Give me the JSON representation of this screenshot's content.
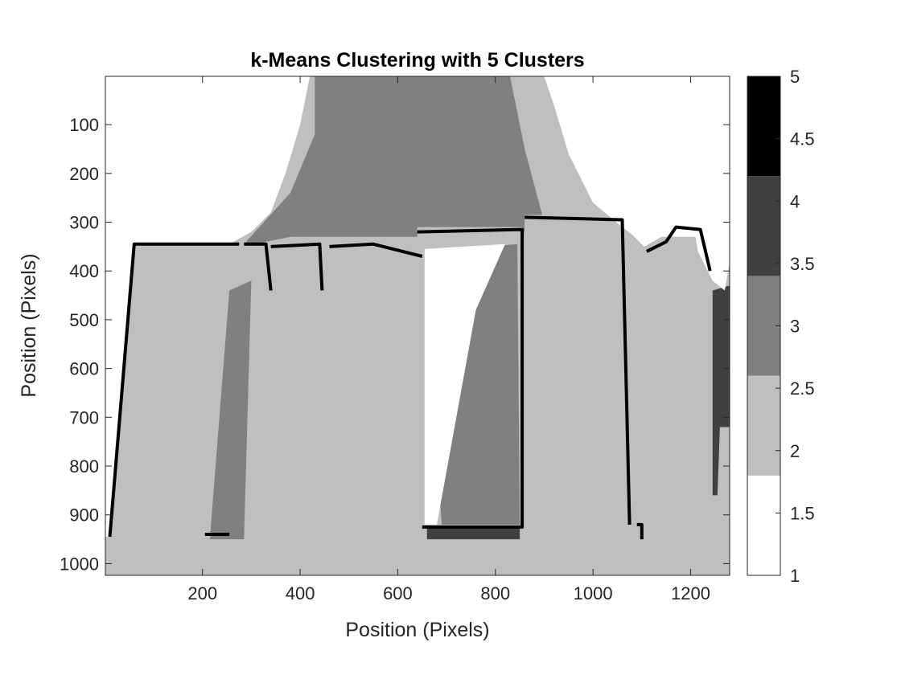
{
  "chart_data": {
    "type": "heatmap",
    "title": "k-Means Clustering with 5 Clusters",
    "xlabel": "Position (Pixels)",
    "ylabel": "Position (Pixels)",
    "xlim": [
      1,
      1280
    ],
    "ylim": [
      1,
      1024
    ],
    "y_direction": "reversed",
    "x_ticks": [
      200,
      400,
      600,
      800,
      1000,
      1200
    ],
    "y_ticks": [
      100,
      200,
      300,
      400,
      500,
      600,
      700,
      800,
      900,
      1000
    ],
    "colorbar": {
      "range": [
        1,
        5
      ],
      "ticks": [
        "1",
        "1.5",
        "2",
        "2.5",
        "3",
        "3.5",
        "4",
        "4.5",
        "5"
      ],
      "levels": [
        {
          "cluster": 1,
          "color": "#ffffff"
        },
        {
          "cluster": 2,
          "color": "#bfbfbf"
        },
        {
          "cluster": 3,
          "color": "#808080"
        },
        {
          "cluster": 4,
          "color": "#404040"
        },
        {
          "cluster": 5,
          "color": "#000000"
        }
      ]
    },
    "regions": [
      {
        "cluster": 3,
        "points": [
          [
            280,
            350
          ],
          [
            380,
            240
          ],
          [
            430,
            120
          ],
          [
            430,
            1
          ],
          [
            830,
            1
          ],
          [
            860,
            150
          ],
          [
            900,
            300
          ],
          [
            860,
            330
          ],
          [
            650,
            330
          ],
          [
            470,
            330
          ],
          [
            380,
            330
          ]
        ]
      },
      {
        "cluster": 2,
        "points": [
          [
            1,
            1024
          ],
          [
            1,
            945
          ],
          [
            10,
            945
          ],
          [
            60,
            345
          ],
          [
            275,
            345
          ],
          [
            255,
            940
          ],
          [
            205,
            940
          ],
          [
            230,
            500
          ],
          [
            255,
            345
          ],
          [
            275,
            345
          ],
          [
            290,
            300
          ],
          [
            300,
            950
          ],
          [
            330,
            950
          ],
          [
            340,
            345
          ],
          [
            440,
            345
          ],
          [
            445,
            950
          ],
          [
            460,
            950
          ],
          [
            460,
            345
          ],
          [
            550,
            345
          ],
          [
            650,
            370
          ],
          [
            650,
            920
          ],
          [
            700,
            960
          ],
          [
            850,
            960
          ],
          [
            855,
            320
          ],
          [
            1070,
            310
          ],
          [
            1080,
            920
          ],
          [
            1100,
            920
          ],
          [
            1110,
            350
          ],
          [
            1170,
            310
          ],
          [
            1220,
            310
          ],
          [
            1240,
            400
          ],
          [
            1245,
            950
          ],
          [
            1280,
            950
          ],
          [
            1280,
            1024
          ]
        ]
      },
      {
        "cluster": 2,
        "points": [
          [
            640,
            310
          ],
          [
            855,
            310
          ],
          [
            855,
            925
          ],
          [
            640,
            925
          ]
        ]
      },
      {
        "cluster": 2,
        "points": [
          [
            860,
            285
          ],
          [
            1060,
            285
          ],
          [
            1075,
            920
          ],
          [
            860,
            920
          ]
        ]
      },
      {
        "cluster": 2,
        "points": [
          [
            1110,
            360
          ],
          [
            1240,
            320
          ],
          [
            1250,
            950
          ],
          [
            1110,
            950
          ]
        ]
      },
      {
        "cluster": 3,
        "points": [
          [
            255,
            440
          ],
          [
            300,
            420
          ],
          [
            285,
            950
          ],
          [
            215,
            950
          ]
        ]
      },
      {
        "cluster": 3,
        "points": [
          [
            655,
            360
          ],
          [
            845,
            345
          ],
          [
            850,
            920
          ],
          [
            690,
            920
          ]
        ]
      },
      {
        "cluster": 1,
        "points": [
          [
            655,
            355
          ],
          [
            820,
            345
          ],
          [
            760,
            480
          ],
          [
            680,
            920
          ],
          [
            655,
            920
          ]
        ]
      },
      {
        "cluster": 4,
        "points": [
          [
            1245,
            440
          ],
          [
            1280,
            430
          ],
          [
            1280,
            720
          ],
          [
            1260,
            720
          ],
          [
            1255,
            860
          ],
          [
            1245,
            860
          ]
        ]
      },
      {
        "cluster": 4,
        "points": [
          [
            660,
            925
          ],
          [
            850,
            925
          ],
          [
            850,
            950
          ],
          [
            660,
            950
          ]
        ]
      },
      {
        "cluster": 1,
        "points": [
          [
            905,
            1
          ],
          [
            1280,
            1
          ],
          [
            1280,
            380
          ],
          [
            1270,
            440
          ],
          [
            1245,
            420
          ],
          [
            1215,
            360
          ],
          [
            1210,
            330
          ],
          [
            1140,
            330
          ],
          [
            1105,
            350
          ],
          [
            1080,
            325
          ],
          [
            1060,
            310
          ],
          [
            1000,
            260
          ],
          [
            950,
            160
          ],
          [
            920,
            60
          ],
          [
            900,
            1
          ]
        ]
      },
      {
        "cluster": 1,
        "points": [
          [
            1,
            1
          ],
          [
            420,
            1
          ],
          [
            400,
            100
          ],
          [
            370,
            200
          ],
          [
            340,
            280
          ],
          [
            300,
            320
          ],
          [
            255,
            345
          ],
          [
            60,
            345
          ],
          [
            10,
            945
          ],
          [
            1,
            945
          ]
        ]
      }
    ],
    "lines": [
      {
        "cluster": 5,
        "points": [
          [
            10,
            945
          ],
          [
            60,
            345
          ],
          [
            275,
            345
          ]
        ]
      },
      {
        "cluster": 5,
        "points": [
          [
            285,
            345
          ],
          [
            330,
            345
          ],
          [
            340,
            440
          ]
        ]
      },
      {
        "cluster": 5,
        "points": [
          [
            340,
            350
          ],
          [
            440,
            345
          ],
          [
            445,
            440
          ]
        ]
      },
      {
        "cluster": 5,
        "points": [
          [
            460,
            350
          ],
          [
            550,
            345
          ],
          [
            650,
            370
          ]
        ]
      },
      {
        "cluster": 5,
        "points": [
          [
            640,
            320
          ],
          [
            855,
            315
          ],
          [
            855,
            925
          ],
          [
            650,
            925
          ]
        ]
      },
      {
        "cluster": 5,
        "points": [
          [
            860,
            290
          ],
          [
            1060,
            295
          ],
          [
            1075,
            920
          ]
        ]
      },
      {
        "cluster": 5,
        "points": [
          [
            1110,
            360
          ],
          [
            1150,
            340
          ],
          [
            1170,
            310
          ],
          [
            1220,
            315
          ],
          [
            1240,
            400
          ]
        ]
      },
      {
        "cluster": 5,
        "points": [
          [
            205,
            940
          ],
          [
            255,
            940
          ]
        ]
      },
      {
        "cluster": 5,
        "points": [
          [
            1090,
            920
          ],
          [
            1100,
            920
          ],
          [
            1100,
            950
          ]
        ]
      }
    ]
  }
}
